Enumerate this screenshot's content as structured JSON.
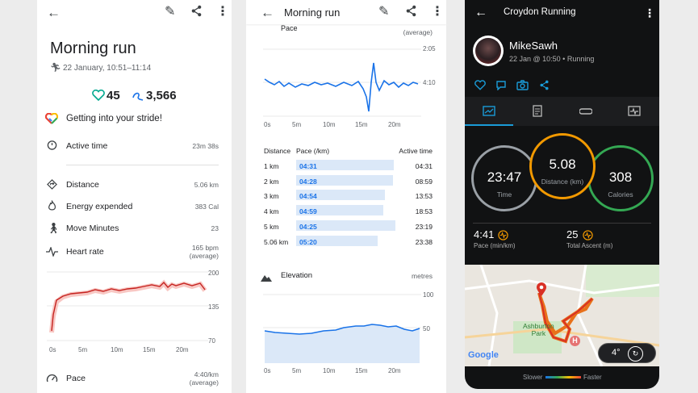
{
  "panel1": {
    "title": "Morning run",
    "date": "22 January, 10:51–11:14",
    "heart_points": "45",
    "steps": "3,566",
    "encouragement": "Getting into your stride!",
    "rows": [
      {
        "label": "Active time",
        "value": "23m 38s"
      },
      {
        "label": "Distance",
        "value": "5.06 km"
      },
      {
        "label": "Energy expended",
        "value": "383 Cal"
      },
      {
        "label": "Move Minutes",
        "value": "23"
      },
      {
        "label": "Heart rate",
        "value": "165 bpm",
        "value2": "(average)"
      }
    ],
    "hr_ticks": [
      "200",
      "135",
      "70"
    ],
    "x_ticks": [
      "0s",
      "5m",
      "10m",
      "15m",
      "20m"
    ],
    "pace_label": "Pace",
    "pace_value": "4:40/km",
    "pace_value2": "(average)"
  },
  "panel2": {
    "title": "Morning run",
    "pace_header": "Pace",
    "pace_avg": "(average)",
    "pace_ticks": [
      "2:05",
      "4:10"
    ],
    "x_ticks": [
      "0s",
      "5m",
      "10m",
      "15m",
      "20m"
    ],
    "table_headers": {
      "distance": "Distance",
      "pace": "Pace (/km)",
      "active": "Active time"
    },
    "splits": [
      {
        "distance": "1 km",
        "pace": "04:31",
        "time": "04:31"
      },
      {
        "distance": "2 km",
        "pace": "04:28",
        "time": "08:59"
      },
      {
        "distance": "3 km",
        "pace": "04:54",
        "time": "13:53"
      },
      {
        "distance": "4 km",
        "pace": "04:59",
        "time": "18:53"
      },
      {
        "distance": "5 km",
        "pace": "04:25",
        "time": "23:19"
      },
      {
        "distance": "5.06 km",
        "pace": "05:20",
        "time": "23:38"
      }
    ],
    "elevation_title": "Elevation",
    "elevation_unit": "metres",
    "elev_ticks": [
      "100",
      "50"
    ]
  },
  "panel3": {
    "title": "Croydon Running",
    "user": "MikeSawh",
    "subtitle": "22 Jan @ 10:50 • Running",
    "time_value": "23:47",
    "time_label": "Time",
    "distance_value": "5.08",
    "distance_label": "Distance (km)",
    "calories_value": "308",
    "calories_label": "Calories",
    "pace_value": "4:41",
    "pace_label": "Pace (min/km)",
    "ascent_value": "25",
    "ascent_label": "Total Ascent (m)",
    "map_place": "Ashburton\nPark",
    "map_brand": "Google",
    "temp": "4°",
    "legend_slow": "Slower",
    "legend_fast": "Faster",
    "colors": {
      "time_ring": "#9aa0a6",
      "distance_ring": "#f29900",
      "calories_ring": "#34a853",
      "accent": "#1a9bd7"
    }
  }
}
